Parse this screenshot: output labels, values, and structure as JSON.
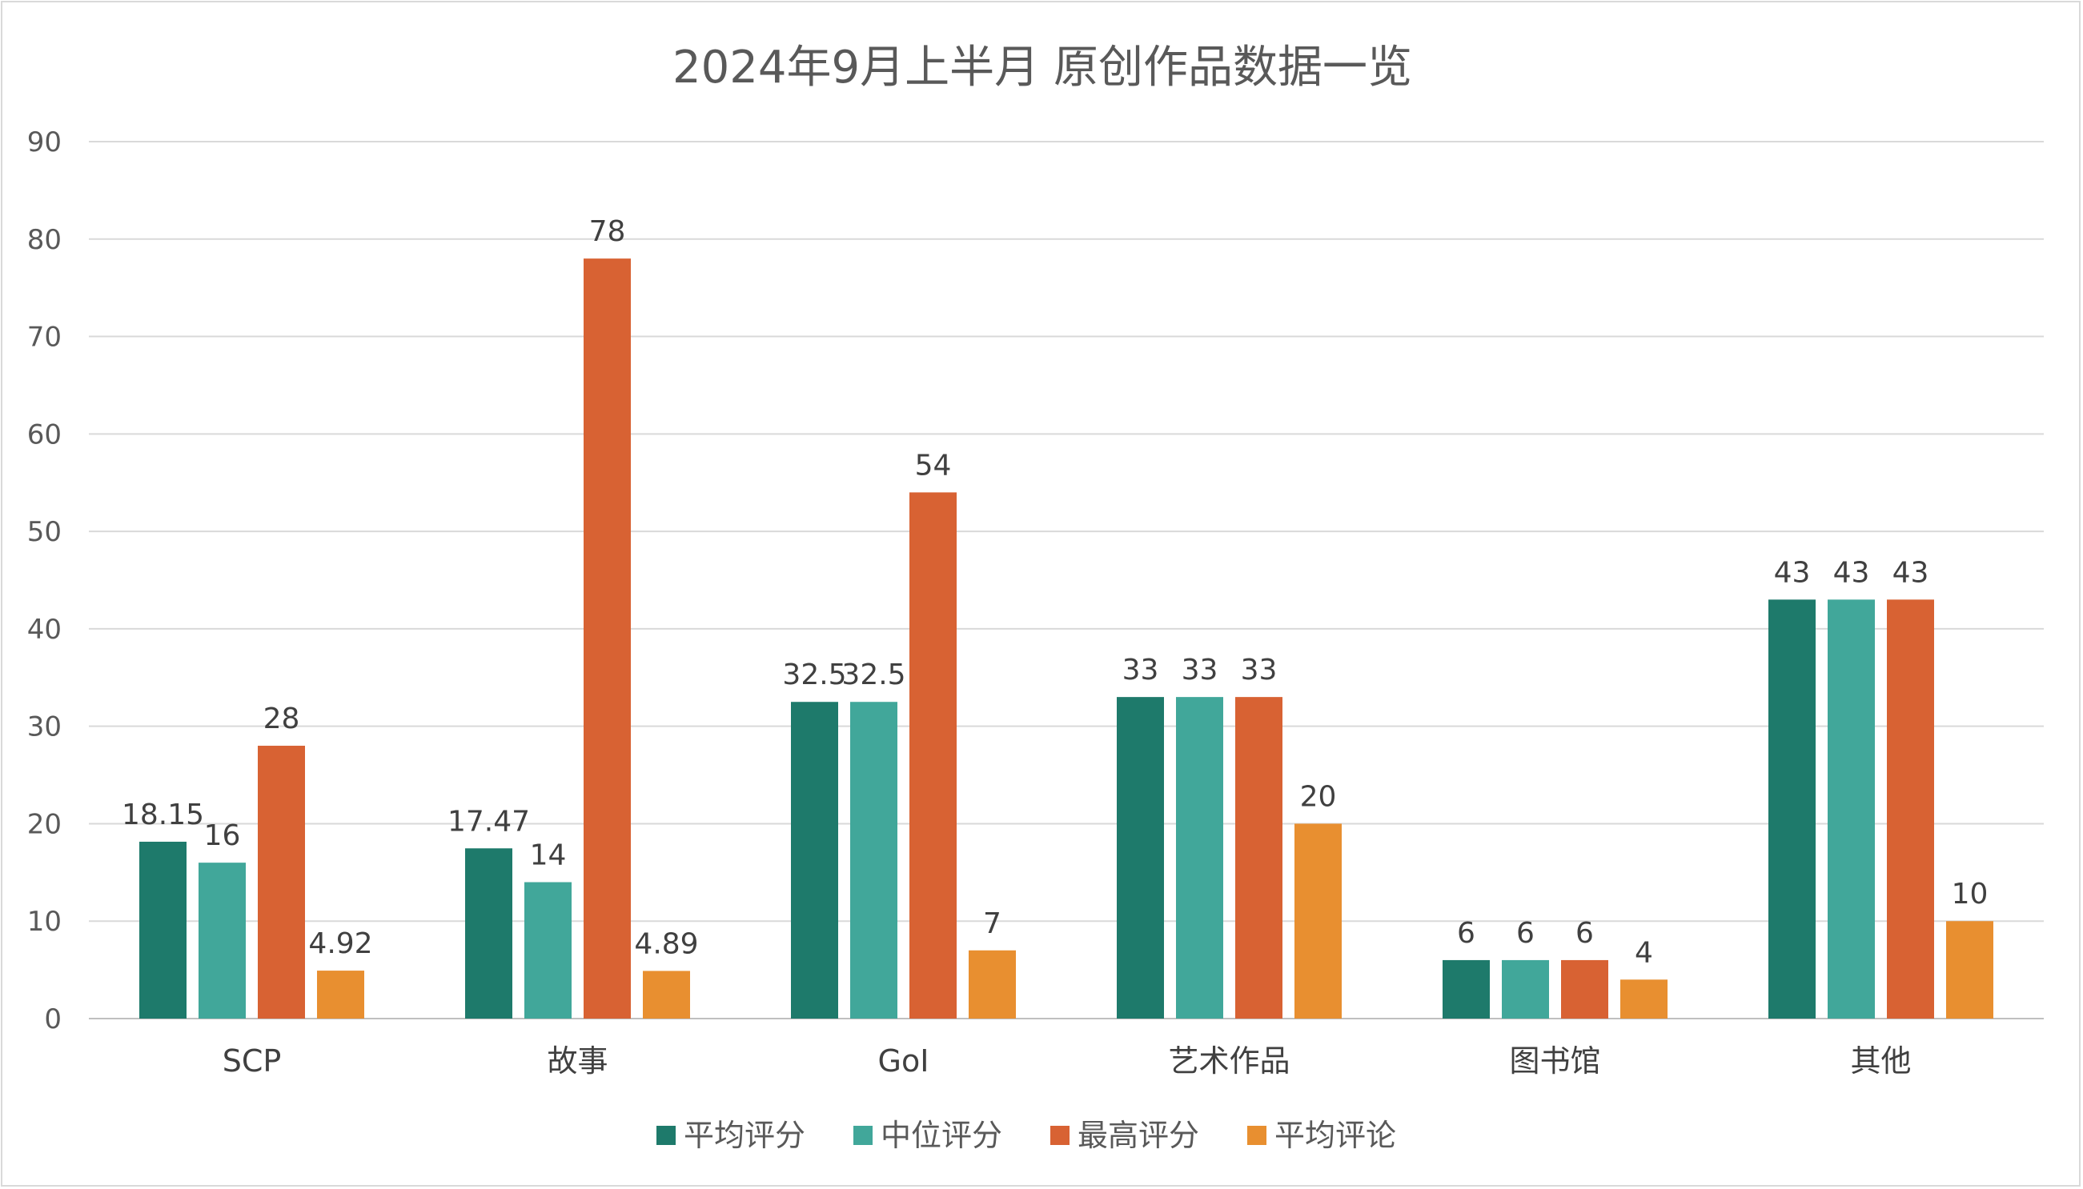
{
  "chart_data": {
    "type": "bar",
    "title": "2024年9月上半月 原创作品数据一览",
    "categories": [
      "SCP",
      "故事",
      "GoI",
      "艺术作品",
      "图书馆",
      "其他"
    ],
    "series": [
      {
        "name": "平均评分",
        "color": "#1e7a6b",
        "values": [
          18.15,
          17.47,
          32.5,
          33,
          6,
          43
        ]
      },
      {
        "name": "中位评分",
        "color": "#41a79a",
        "values": [
          16,
          14,
          32.5,
          33,
          6,
          43
        ]
      },
      {
        "name": "最高评分",
        "color": "#d86233",
        "values": [
          28,
          78,
          54,
          33,
          6,
          43
        ]
      },
      {
        "name": "平均评论",
        "color": "#e88f30",
        "values": [
          4.92,
          4.89,
          7,
          20,
          4,
          10
        ]
      }
    ],
    "ylim": [
      0,
      90
    ],
    "yticks": [
      0,
      10,
      20,
      30,
      40,
      50,
      60,
      70,
      80,
      90
    ],
    "xlabel": "",
    "ylabel": "",
    "grid": true,
    "legend": "bottom"
  }
}
